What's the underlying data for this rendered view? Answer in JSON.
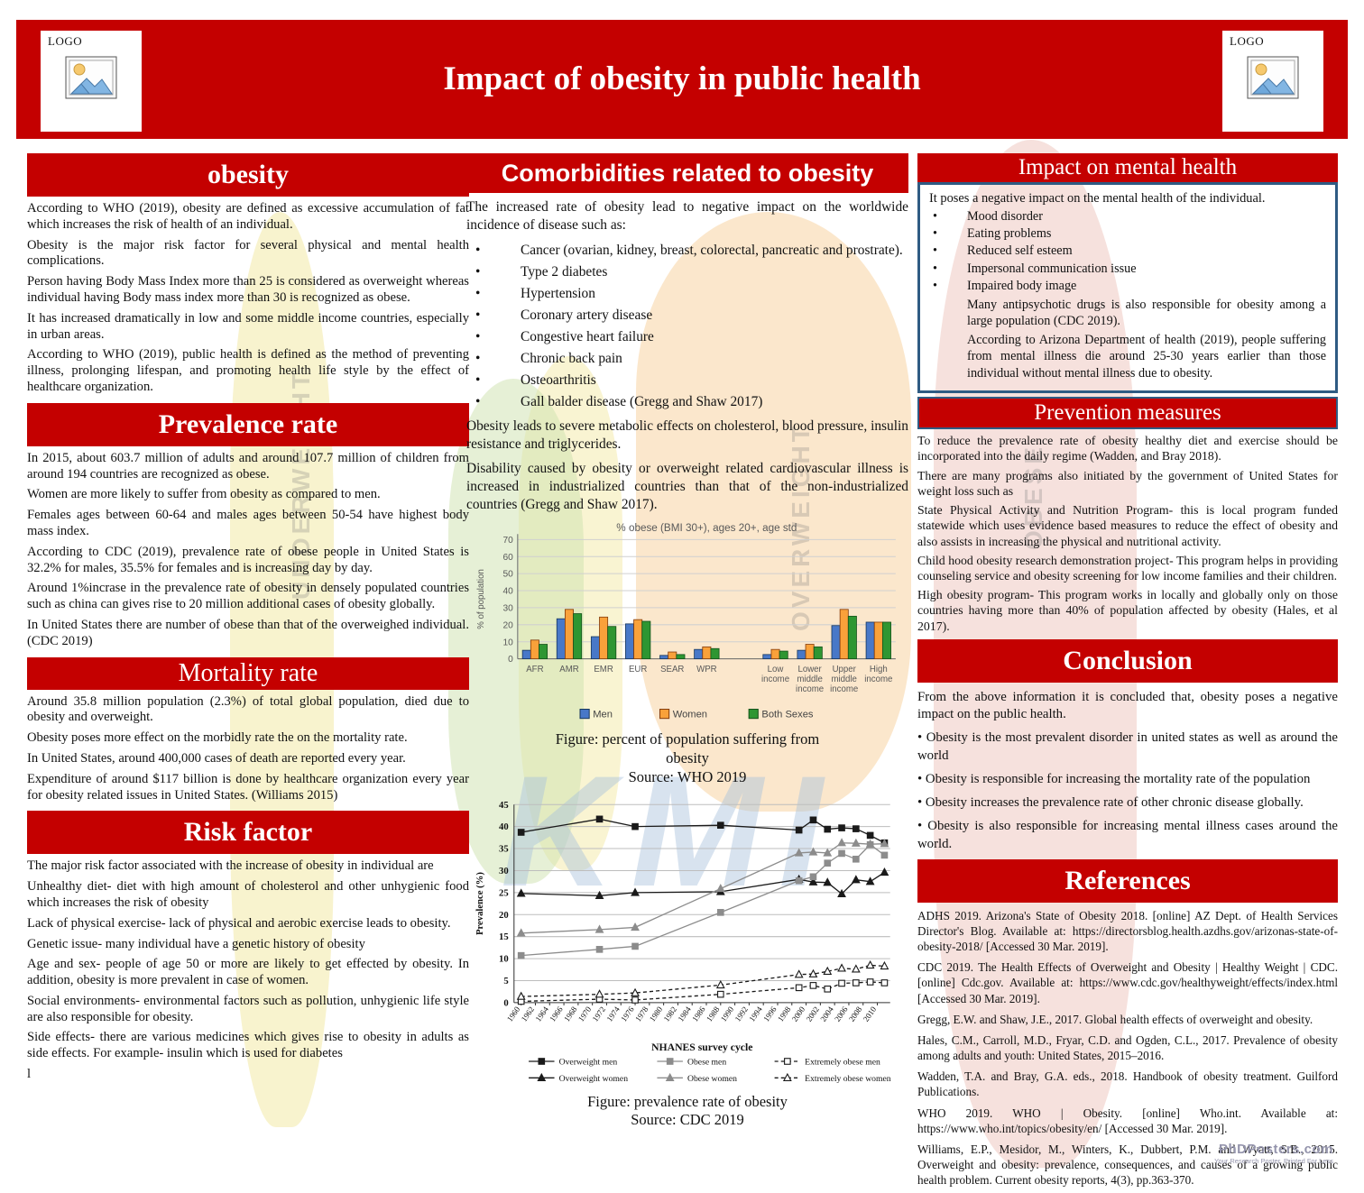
{
  "header": {
    "title": "Impact of obesity in public health",
    "logo_label": "LOGO"
  },
  "left": {
    "obesity": {
      "heading": "obesity",
      "paragraphs": [
        "According to WHO (2019), obesity are defined as excessive accumulation of fat which increases the risk of health  of an individual.",
        "Obesity is the major risk factor for several physical and mental health complications.",
        "Person having Body Mass Index more than 25 is considered as overweight whereas individual having Body mass index more than 30 is recognized as obese.",
        "It has increased dramatically in low and some middle income countries, especially in urban areas.",
        "According to WHO (2019), public health is defined as the method of preventing illness, prolonging lifespan, and promoting health life style by the effect of healthcare organization."
      ]
    },
    "prevalence": {
      "heading": "Prevalence rate",
      "paragraphs": [
        "In 2015, about 603.7 million of adults and around 107.7 million of children from around 194 countries are recognized as obese.",
        "Women are more likely to suffer from obesity as compared to men.",
        "Females ages between 60-64 and males ages between 50-54 have highest body mass index.",
        "According to CDC (2019), prevalence rate of obese people in United States is 32.2% for males, 35.5% for females and is increasing day by day.",
        "Around 1%incrase in the prevalence rate of obesity in densely populated countries such as china can gives rise to 20 million additional cases of obesity globally.",
        "In United States there are number of obese than that of the overweighed individual.(CDC  2019)"
      ]
    },
    "mortality": {
      "heading": "Mortality rate",
      "paragraphs": [
        "Around 35.8 million population (2.3%) of total global population, died due to obesity and overweight.",
        "Obesity poses more effect on the morbidly rate the on the mortality rate.",
        "In United States, around 400,000 cases of death are reported every year.",
        "Expenditure of around $117 billion is done by healthcare organization every year for obesity related issues in United States. (Williams 2015)"
      ]
    },
    "risk": {
      "heading": "Risk factor",
      "paragraphs": [
        "The major risk factor associated with the increase of obesity in individual  are",
        "Unhealthy diet- diet with high amount of cholesterol and other unhygienic food which increases the risk of obesity",
        "Lack of physical exercise- lack of physical and aerobic exercise leads to obesity.",
        "Genetic issue- many individual have a genetic history of obesity",
        "Age and sex- people of age 50 or more are likely to get effected by obesity. In addition, obesity is more prevalent in case of women.",
        "Social environments- environmental factors such as pollution, unhygienic life style are also responsible for obesity.",
        "Side effects- there are various medicines which gives rise to obesity in adults as side effects. For example- insulin which is used for diabetes",
        "l"
      ]
    }
  },
  "middle": {
    "heading": "Comorbidities related to obesity",
    "intro": "The increased rate of obesity lead to negative impact on the worldwide incidence of disease such as:",
    "bullets": [
      "Cancer (ovarian, kidney, breast, colorectal, pancreatic and prostrate).",
      "Type 2 diabetes",
      "Hypertension",
      "Coronary artery disease",
      "Congestive heart failure",
      "Chronic back pain",
      "Osteoarthritis",
      "Gall balder disease (Gregg and Shaw 2017)"
    ],
    "after": [
      "Obesity leads to severe metabolic effects on cholesterol, blood pressure, insulin resistance and triglycerides.",
      "Disability caused by obesity or overweight related cardiovascular illness is increased in industrialized countries than that of the non-industrialized countries (Gregg and Shaw 2017)."
    ],
    "caption1": {
      "line1": "Figure: percent of  population suffering from",
      "line2": "obesity",
      "line3": "Source: WHO  2019"
    },
    "caption2": {
      "line1": "Figure: prevalence rate of obesity",
      "line2": "Source: CDC  2019"
    }
  },
  "right": {
    "mental": {
      "heading": "Impact on mental health",
      "intro": "It poses a negative impact on the mental health  of the individual.",
      "bullets": [
        "Mood disorder",
        "Eating problems",
        "Reduced self esteem",
        "Impersonal communication issue",
        "Impaired body image"
      ],
      "notes": [
        "Many antipsychotic drugs is also responsible for obesity among a large population (CDC  2019).",
        "According to Arizona Department of health (2019), people suffering from mental illness die around 25-30 years earlier  than those individual without mental illness due to obesity."
      ]
    },
    "prevention": {
      "heading": "Prevention measures",
      "paragraphs": [
        "To reduce the prevalence rate of obesity healthy diet and exercise should be incorporated into the daily regime (Wadden, and Bray 2018).",
        " There are many programs also initiated by the government of United States for weight loss such as",
        "State Physical Activity and Nutrition Program- this is local program funded statewide which uses evidence based measures to reduce the effect of obesity and also assists in increasing the physical and nutritional activity.",
        "Child hood obesity research demonstration project- This program helps in providing counseling service and obesity screening for low income families and their children.",
        " High obesity program- This program works in locally and globally only on those countries having more than 40% of population affected by obesity (Hales, et al 2017)."
      ]
    },
    "conclusion": {
      "heading": "Conclusion",
      "paragraphs": [
        "From  the above information it is concluded that, obesity poses a negative impact on the  public health.",
        "• Obesity is the most prevalent disorder in united states as well as around the world",
        "• Obesity is responsible for increasing the mortality rate of  the population",
        "• Obesity increases the prevalence rate of other chronic disease globally.",
        "• Obesity is also responsible for increasing mental illness cases around the world."
      ]
    },
    "references": {
      "heading": "References",
      "entries": [
        "ADHS 2019. Arizona's State of Obesity 2018. [online] AZ Dept. of Health Services Director's Blog. Available at: https://directorsblog.health.azdhs.gov/arizonas-state-of-obesity-2018/ [Accessed 30 Mar. 2019].",
        "CDC  2019. The Health Effects of Overweight and Obesity | Healthy Weight | CDC. [online] Cdc.gov. Available at: https://www.cdc.gov/healthyweight/effects/index.html [Accessed 30 Mar. 2019].",
        "Gregg, E.W. and Shaw, J.E., 2017. Global health effects of overweight and obesity.",
        "Hales, C.M., Carroll, M.D., Fryar, C.D. and Ogden, C.L., 2017. Prevalence of obesity among adults and youth: United States, 2015–2016.",
        "Wadden, T.A. and Bray, G.A. eds., 2018. Handbook of obesity treatment. Guilford Publications.",
        "WHO  2019. WHO | Obesity. [online] Who.int. Available at: https://www.who.int/topics/obesity/en/ [Accessed 30 Mar. 2019].",
        "Williams, E.P., Mesidor, M., Winters, K., Dubbert, P.M. and Wyatt, S.B., 2015. Overweight and obesity: prevalence, consequences, and causes of a growing public health problem. Current obesity reports, 4(3), pp.363-370."
      ]
    }
  },
  "watermarks": {
    "words": [
      "UNDERWEIGHT",
      "OVERWEIGHT",
      "OBESE"
    ],
    "kmi": "KMI"
  },
  "footer": {
    "brand": "PhDPosters.com",
    "tagline": "Your Research Poster, Printed For Less"
  },
  "colors": {
    "accent_red": "#C40000",
    "box_border_blue": "#2F5B83"
  },
  "chart_data": [
    {
      "type": "bar",
      "title": "% obese (BMI 30+), ages 20+, age std",
      "xlabel": "",
      "ylabel": "% of population",
      "ylim": [
        0,
        70
      ],
      "grid": true,
      "legend_position": "bottom",
      "categories": [
        "AFR",
        "AMR",
        "EMR",
        "EUR",
        "SEAR",
        "WPR",
        "Low|income",
        "Lower|middle|income",
        "Upper|middle|income",
        "High|income"
      ],
      "series": [
        {
          "name": "Men",
          "color": "#4878C8",
          "stroke": "#17375E",
          "values": [
            5,
            23.5,
            13,
            20.5,
            2,
            5.5,
            2.5,
            5,
            19.5,
            21.5
          ]
        },
        {
          "name": "Women",
          "color": "#F9A13A",
          "stroke": "#843C0C",
          "values": [
            11,
            29,
            24.5,
            23,
            4,
            7,
            5.5,
            8.5,
            29,
            21.5
          ]
        },
        {
          "name": "Both Sexes",
          "color": "#2E9632",
          "stroke": "#14521A",
          "values": [
            8.5,
            26.5,
            19,
            22,
            2.5,
            6,
            4.5,
            7,
            25,
            21.5
          ]
        }
      ]
    },
    {
      "type": "line",
      "title": "",
      "xlabel": "NHANES survey cycle",
      "ylabel": "Prevalence (%)",
      "ylim": [
        0,
        45
      ],
      "xticks_start": 1960,
      "xticks_end": 2010,
      "xticks_step": 2,
      "grid": true,
      "legend_position": "bottom",
      "x": [
        1960,
        1971,
        1976,
        1988,
        1999,
        2001,
        2003,
        2005,
        2007,
        2009,
        2011
      ],
      "series": [
        {
          "name": "Overweight men",
          "marker": "square",
          "open": false,
          "dash": false,
          "color": "#1a1a1a",
          "values": [
            38.7,
            41.7,
            40.0,
            40.3,
            39.2,
            41.5,
            39.4,
            39.7,
            39.5,
            38.0,
            36.3
          ]
        },
        {
          "name": "Overweight women",
          "marker": "triangle",
          "open": false,
          "dash": false,
          "color": "#1a1a1a",
          "values": [
            24.8,
            24.3,
            25.0,
            25.2,
            28.0,
            27.4,
            27.3,
            24.7,
            27.9,
            27.5,
            29.6
          ]
        },
        {
          "name": "Obese men",
          "marker": "square",
          "open": false,
          "dash": false,
          "color": "#8C8C8C",
          "values": [
            10.7,
            12.1,
            12.8,
            20.5,
            27.7,
            28.6,
            31.7,
            33.9,
            32.6,
            35.9,
            33.5
          ]
        },
        {
          "name": "Obese women",
          "marker": "triangle",
          "open": false,
          "dash": false,
          "color": "#8C8C8C",
          "values": [
            15.8,
            16.6,
            17.1,
            25.9,
            34.0,
            34.2,
            34.0,
            36.3,
            36.2,
            36.0,
            36.1
          ]
        },
        {
          "name": "Extremely obese men",
          "marker": "square",
          "open": true,
          "dash": true,
          "color": "#1a1a1a",
          "values": [
            0.3,
            0.8,
            0.6,
            1.9,
            3.4,
            3.9,
            3.1,
            4.4,
            4.5,
            4.7,
            4.5
          ]
        },
        {
          "name": "Extremely obese women",
          "marker": "triangle",
          "open": true,
          "dash": true,
          "color": "#1a1a1a",
          "values": [
            1.4,
            1.9,
            2.2,
            4.0,
            6.4,
            6.5,
            7.1,
            7.8,
            7.6,
            8.5,
            8.3
          ]
        }
      ]
    }
  ]
}
